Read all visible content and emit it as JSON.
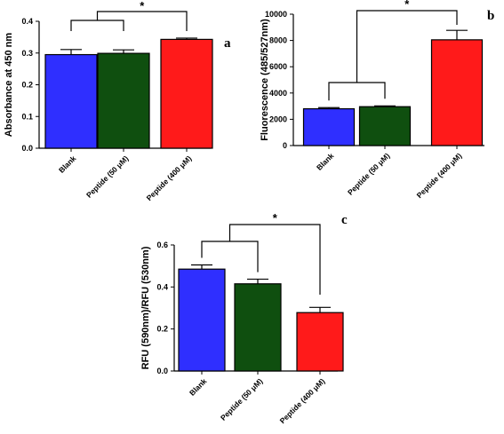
{
  "chart_data": [
    {
      "panel_label": "a",
      "type": "bar",
      "categories": [
        "Blank",
        "Peptide (50 μM)",
        "Peptide (400 μM)"
      ],
      "values": [
        0.295,
        0.299,
        0.343
      ],
      "errors": [
        0.016,
        0.011,
        0.004
      ],
      "colors": [
        "#2f2fff",
        "#0f4f0f",
        "#ff1a1a"
      ],
      "ylabel": "Absorbance at 450 nm",
      "ylim": [
        0,
        0.4
      ],
      "yticks": [
        0.0,
        0.1,
        0.2,
        0.3,
        0.4
      ],
      "ytick_labels": [
        "0.0",
        "0.1",
        "0.2",
        "0.3",
        "0.4"
      ],
      "significance": [
        {
          "from": [
            0,
            1
          ],
          "to": [
            2
          ],
          "label": "*"
        }
      ]
    },
    {
      "panel_label": "b",
      "type": "bar",
      "categories": [
        "Blank",
        "Peptide (50 μM)",
        "Peptide (400 μM)"
      ],
      "values": [
        2800,
        2960,
        8050
      ],
      "errors": [
        90,
        60,
        720
      ],
      "colors": [
        "#2f2fff",
        "#0f4f0f",
        "#ff1a1a"
      ],
      "ylabel": "Fluorescence (485/527nm)",
      "ylim": [
        0,
        10000
      ],
      "yticks": [
        0,
        2000,
        4000,
        6000,
        8000,
        10000
      ],
      "ytick_labels": [
        "0",
        "2000",
        "4000",
        "6000",
        "8000",
        "10000"
      ],
      "significance": [
        {
          "from": [
            0,
            1
          ],
          "to": [
            2
          ],
          "label": "*"
        }
      ]
    },
    {
      "panel_label": "c",
      "type": "bar",
      "categories": [
        "Blank",
        "Peptide (50 μM)",
        "Peptide (400 μM)"
      ],
      "values": [
        0.485,
        0.415,
        0.278
      ],
      "errors": [
        0.02,
        0.022,
        0.025
      ],
      "colors": [
        "#2f2fff",
        "#0f4f0f",
        "#ff1a1a"
      ],
      "ylabel": "RFU (590nm)/RFU (530nm)",
      "ylim": [
        0,
        0.6
      ],
      "yticks": [
        0.0,
        0.2,
        0.4,
        0.6
      ],
      "ytick_labels": [
        "0.0",
        "0.2",
        "0.4",
        "0.6"
      ],
      "significance": [
        {
          "from": [
            0,
            1
          ],
          "to": [
            2
          ],
          "label": "*"
        }
      ]
    }
  ]
}
